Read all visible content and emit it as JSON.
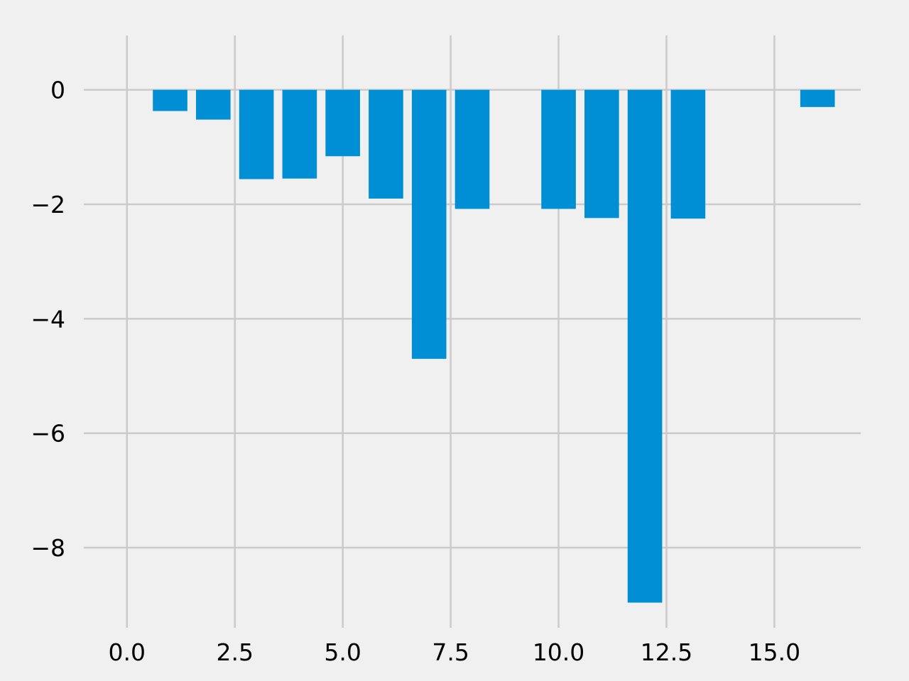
{
  "chart_data": {
    "type": "bar",
    "x": [
      1,
      2,
      3,
      4,
      5,
      6,
      7,
      8,
      10,
      11,
      12,
      13,
      16
    ],
    "values": [
      -0.37,
      -0.52,
      -1.56,
      -1.55,
      -1.16,
      -1.9,
      -4.7,
      -2.08,
      -2.08,
      -2.24,
      -8.96,
      -2.25,
      -0.3
    ],
    "bar_width": 0.8,
    "bar_color": "#008fd5",
    "xlim": [
      -1.0,
      17.0
    ],
    "ylim": [
      -9.4,
      0.95
    ],
    "xticks": [
      0.0,
      2.5,
      5.0,
      7.5,
      10.0,
      12.5,
      15.0
    ],
    "xtick_labels": [
      "0.0",
      "2.5",
      "5.0",
      "7.5",
      "10.0",
      "12.5",
      "15.0"
    ],
    "yticks": [
      0,
      -2,
      -4,
      -6,
      -8
    ],
    "ytick_labels": [
      "0",
      "−2",
      "−4",
      "−6",
      "−8"
    ],
    "grid": true,
    "background": "#f0f0f0",
    "title": "",
    "xlabel": "",
    "ylabel": ""
  }
}
